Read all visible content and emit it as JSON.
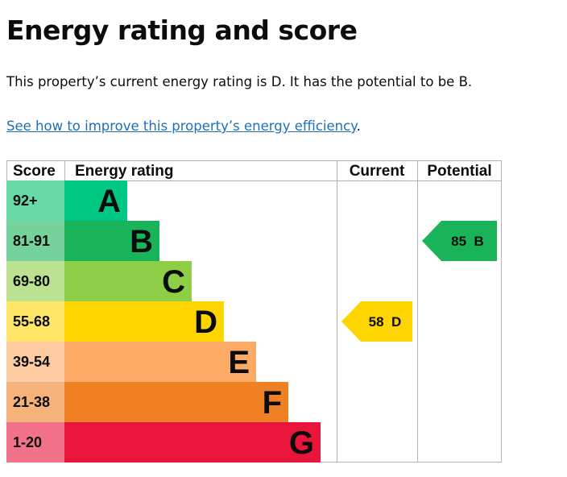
{
  "heading": "Energy rating and score",
  "summary": "This property’s current energy rating is D. It has the potential to be B.",
  "link": {
    "text": "See how to improve this property’s energy efficiency",
    "suffix": "."
  },
  "chart_data": {
    "type": "table",
    "columns": [
      "Score",
      "Energy rating",
      "Current",
      "Potential"
    ],
    "bands": [
      {
        "score": "92+",
        "letter": "A",
        "band_color": "#00c781",
        "score_bg": "#66d9a7"
      },
      {
        "score": "81-91",
        "letter": "B",
        "band_color": "#19b459",
        "score_bg": "#75d29b"
      },
      {
        "score": "69-80",
        "letter": "C",
        "band_color": "#8dce46",
        "score_bg": "#bbe290"
      },
      {
        "score": "55-68",
        "letter": "D",
        "band_color": "#ffd500",
        "score_bg": "#ffe666"
      },
      {
        "score": "39-54",
        "letter": "E",
        "band_color": "#fcaa65",
        "score_bg": "#fdcca3"
      },
      {
        "score": "21-38",
        "letter": "F",
        "band_color": "#ef8023",
        "score_bg": "#f5b37b"
      },
      {
        "score": "1-20",
        "letter": "G",
        "band_color": "#e9153b",
        "score_bg": "#f27389"
      }
    ],
    "current": {
      "score": 58,
      "letter": "D",
      "label": "58  D",
      "color": "#ffd500",
      "text_color": "#0b0c0c"
    },
    "potential": {
      "score": 85,
      "letter": "B",
      "label": "85  B",
      "color": "#19b459",
      "text_color": "#0b0c0c"
    }
  }
}
